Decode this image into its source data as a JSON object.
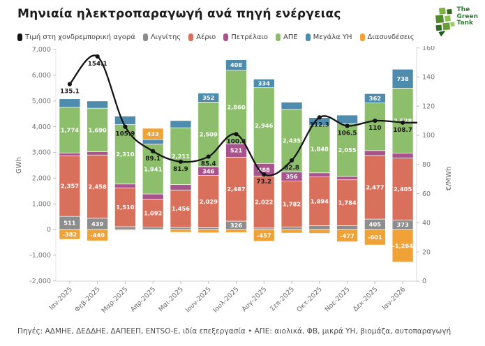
{
  "logo": {
    "lines": [
      "The",
      "Green",
      "Tank"
    ],
    "color": "#2e7d32"
  },
  "footer": {
    "text": "Πηγές: ΑΔΜΗΕ, ΔΕΔΔΗΕ, ΔΑΠΕΕΠ, ENTSO-E, ιδία επεξεργασία • ΑΠΕ: αιολικά, ΦΒ, μικρά ΥΗ, βιομάζα, αυτοπαραγωγή"
  },
  "chart_data": {
    "type": "bar",
    "overlay_type": "line",
    "title": "Μηνιαία ηλεκτροπαραγωγή ανά πηγή ενέργειας",
    "stacked": true,
    "grid": false,
    "legend_position": "top",
    "categories": [
      "Ιαν-2025",
      "Φεβ-2025",
      "Μαρ-2025",
      "Απρ-2025",
      "Μαι-2025",
      "Ιουν-2025",
      "Ιουλ-2025",
      "Αυγ-2025",
      "Σεπ-2025",
      "Οκτ-2025",
      "Νοε-2025",
      "Δεκ-2025",
      "Ιαν-2026"
    ],
    "bar_series": [
      {
        "name": "Λιγνίτης",
        "color": "#8D8D8D",
        "values": [
          511,
          439,
          110,
          90,
          80,
          70,
          326,
          60,
          100,
          150,
          150,
          405,
          373
        ],
        "labels": [
          "511",
          "439",
          "",
          "",
          "",
          "",
          "326",
          "",
          "",
          "",
          "",
          "405",
          "373"
        ]
      },
      {
        "name": "Αέριο",
        "color": "#D9705C",
        "values": [
          2357,
          2458,
          1510,
          1092,
          1456,
          2029,
          2487,
          2022,
          1782,
          1894,
          1784,
          2477,
          2405
        ],
        "labels": [
          "2,357",
          "2,458",
          "1,510",
          "1,092",
          "1,456",
          "2,029",
          "2,487",
          "2,022",
          "1,782",
          "1,894",
          "1,784",
          "2,477",
          "2,405"
        ]
      },
      {
        "name": "Πετρέλαιο",
        "color": "#A9538D",
        "values": [
          110,
          130,
          150,
          200,
          210,
          346,
          521,
          488,
          356,
          160,
          130,
          190,
          190
        ],
        "labels": [
          "",
          "",
          "",
          "",
          "",
          "346",
          "521",
          "488",
          "356",
          "",
          "",
          "",
          ""
        ]
      },
      {
        "name": "ΑΠΕ",
        "color": "#8DBE6C",
        "values": [
          1774,
          1690,
          2310,
          1941,
          2211,
          2509,
          2860,
          2946,
          2435,
          1848,
          2055,
          1850,
          2528
        ],
        "labels": [
          "1,774",
          "1,690",
          "2,310",
          "1,941",
          "2,211",
          "2,509",
          "2,860",
          "2,946",
          "2,435",
          "1,848",
          "2,055",
          "",
          "2,528"
        ]
      },
      {
        "name": "Μεγάλα ΥΗ",
        "color": "#4E8CAE",
        "values": [
          330,
          280,
          330,
          180,
          280,
          352,
          408,
          334,
          280,
          300,
          330,
          362,
          738
        ],
        "labels": [
          "",
          "",
          "",
          "",
          "",
          "352",
          "408",
          "334",
          "",
          "",
          "",
          "362",
          "738"
        ]
      },
      {
        "name": "Διασυνδέσεις",
        "color": "#F0A236",
        "values": [
          -382,
          -440,
          -40,
          433,
          -110,
          -130,
          -120,
          -457,
          -140,
          -150,
          -477,
          -601,
          -1264
        ],
        "labels": [
          "-382",
          "-440",
          "",
          "433",
          "",
          "",
          "",
          "-457",
          "",
          "",
          "-477",
          "-601",
          "-1,264"
        ]
      }
    ],
    "line_series": {
      "name": "Τιμή στη χονδρεμπορική αγορά",
      "color": "#141414",
      "values": [
        135.1,
        154.1,
        105.9,
        89.1,
        81.9,
        85.4,
        100.8,
        73.2,
        82.8,
        112.3,
        106.5,
        110,
        108.7
      ],
      "labels": [
        "135.1",
        "154.1",
        "105.9",
        "89.1",
        "81.9",
        "85.4",
        "100.8",
        "73.2",
        "82.8",
        "112.3",
        "106.5",
        "110",
        "108.7"
      ]
    },
    "left_axis": {
      "label": "GWh",
      "min": -2000,
      "max": 7000,
      "tick_values": [
        -2000,
        -1000,
        0,
        1000,
        2000,
        3000,
        4000,
        5000,
        6000,
        7000
      ],
      "tick_labels": [
        "-2,000",
        "-1,000",
        "0",
        "1,000",
        "2,000",
        "3,000",
        "4,000",
        "5,000",
        "6,000",
        "7,000"
      ]
    },
    "right_axis": {
      "label": "€/MWh",
      "min": 0,
      "max": 160,
      "tick_values": [
        0,
        20,
        40,
        60,
        80,
        100,
        120,
        140,
        160
      ],
      "tick_labels": [
        "0",
        "20",
        "40",
        "60",
        "80",
        "100",
        "120",
        "140",
        "160"
      ]
    }
  }
}
